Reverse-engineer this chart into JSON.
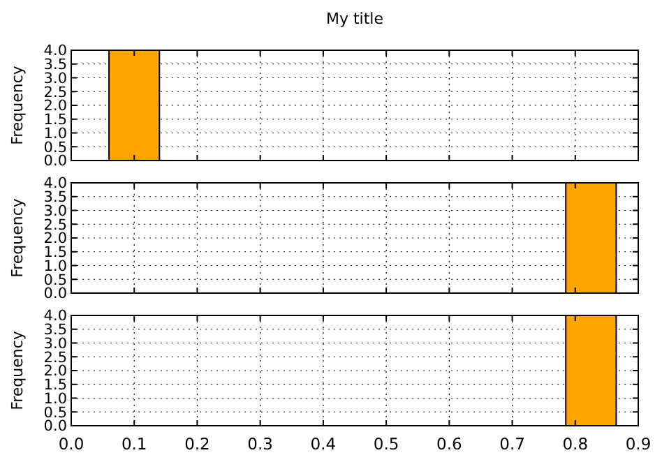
{
  "chart_data": [
    {
      "type": "histogram",
      "title": "My title",
      "ylabel": "Frequency",
      "bins": [
        0.06,
        0.14
      ],
      "values": [
        4
      ],
      "color": "#ffa500",
      "xlim": [
        0,
        0.9
      ],
      "xticks": [
        0,
        0.1,
        0.2,
        0.3,
        0.4,
        0.5,
        0.6,
        0.7,
        0.8,
        0.9
      ],
      "ylim": [
        0,
        4
      ],
      "yticks": [
        {
          "value": 0,
          "label": "0.0"
        },
        0.5,
        {
          "value": 1,
          "label": "1.0"
        },
        1.5,
        {
          "value": 2,
          "label": "2.0"
        },
        2.5,
        {
          "value": 3,
          "label": "3.0"
        },
        3.5,
        {
          "value": 4,
          "label": "4.0"
        }
      ],
      "grid": true,
      "tick_labels": "y"
    },
    {
      "type": "histogram",
      "ylabel": "Frequency",
      "bins": [
        0.785,
        0.865
      ],
      "values": [
        4
      ],
      "color": "#ffa500",
      "xlim": [
        0,
        0.9
      ],
      "xticks": [
        0,
        0.1,
        0.2,
        0.3,
        0.4,
        0.5,
        0.6,
        0.7,
        0.8,
        0.9
      ],
      "ylim": [
        0,
        4
      ],
      "yticks": [
        {
          "value": 0,
          "label": "0.0"
        },
        0.5,
        {
          "value": 1,
          "label": "1.0"
        },
        1.5,
        {
          "value": 2,
          "label": "2.0"
        },
        2.5,
        {
          "value": 3,
          "label": "3.0"
        },
        3.5,
        {
          "value": 4,
          "label": "4.0"
        }
      ],
      "grid": true,
      "tick_labels": "y"
    },
    {
      "type": "histogram",
      "ylabel": "Frequency",
      "bins": [
        0.785,
        0.865
      ],
      "values": [
        4
      ],
      "color": "#ffa500",
      "xlim": [
        0,
        0.9
      ],
      "xticks": [
        {
          "value": 0,
          "label": "0.0"
        },
        0.1,
        0.2,
        0.3,
        0.4,
        0.5,
        0.6,
        0.7,
        0.8,
        0.9
      ],
      "ylim": [
        0,
        4
      ],
      "yticks": [
        {
          "value": 0,
          "label": "0.0"
        },
        0.5,
        {
          "value": 1,
          "label": "1.0"
        },
        1.5,
        {
          "value": 2,
          "label": "2.0"
        },
        2.5,
        {
          "value": 3,
          "label": "3.0"
        },
        3.5,
        {
          "value": 4,
          "label": "4.0"
        }
      ],
      "grid": true
    }
  ]
}
